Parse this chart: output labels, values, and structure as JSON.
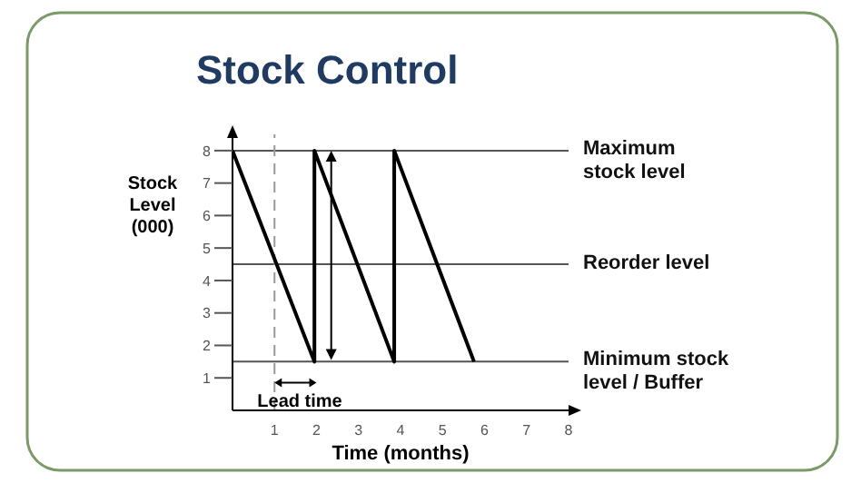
{
  "chart_data": {
    "type": "line",
    "title": "Stock Control",
    "xlabel": "Time (months)",
    "ylabel": "Stock Level (000)",
    "x": [
      0,
      1.95,
      1.95,
      3.85,
      3.85,
      5.75
    ],
    "series": [
      {
        "color": "#000000",
        "values": [
          8,
          1.5,
          8,
          1.5,
          8,
          1.5
        ]
      }
    ],
    "xlim": [
      0,
      8
    ],
    "xticks": [
      1,
      2,
      3,
      4,
      5,
      6,
      7,
      8
    ],
    "ylim": [
      0,
      8.5
    ],
    "yticks": [
      1,
      2,
      3,
      4,
      5,
      6,
      7,
      8
    ],
    "ref_lines": [
      {
        "axis": "y",
        "value": 8,
        "label": "Maximum stock level"
      },
      {
        "axis": "y",
        "value": 4.5,
        "label": "Reorder level"
      },
      {
        "axis": "y",
        "value": 1.5,
        "label": "Minimum stock level / Buffer"
      },
      {
        "axis": "x",
        "value": 1,
        "line_style": "dashed",
        "color": "#999999"
      }
    ],
    "annotations": [
      "Lead time"
    ],
    "grid": false,
    "legend": false,
    "marker": "none",
    "line_style": "solid"
  }
}
